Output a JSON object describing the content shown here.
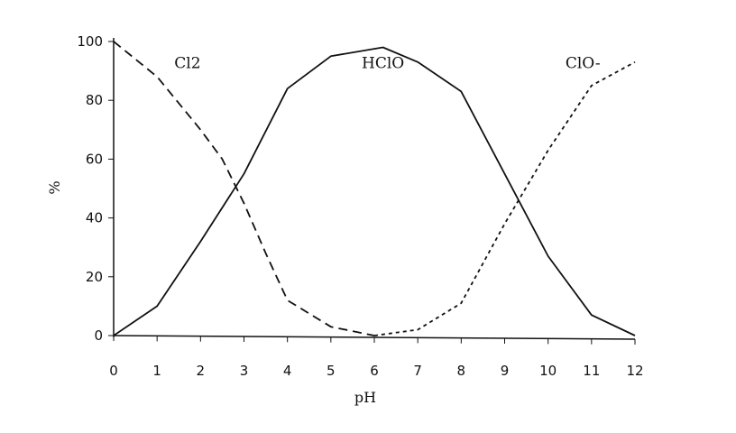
{
  "chart_data": {
    "type": "line",
    "title": "",
    "xlabel": "pH",
    "ylabel": "%",
    "xlim": [
      0,
      12
    ],
    "ylim": [
      0,
      100
    ],
    "x_ticks": [
      0,
      1,
      2,
      3,
      4,
      5,
      6,
      7,
      8,
      9,
      10,
      11,
      12
    ],
    "y_ticks": [
      0,
      20,
      40,
      60,
      80,
      100
    ],
    "grid": false,
    "legend": "none",
    "series": [
      {
        "name": "Cl2",
        "style": "dashed",
        "x": [
          0,
          1,
          2,
          2.5,
          3,
          3.5,
          4,
          5,
          6
        ],
        "y": [
          100,
          88,
          70,
          60,
          45,
          28,
          12,
          3,
          0
        ]
      },
      {
        "name": "HClO",
        "style": "solid",
        "x": [
          0,
          1,
          2,
          3,
          4,
          5,
          6.2,
          7,
          8,
          9,
          10,
          11,
          12
        ],
        "y": [
          0,
          10,
          32,
          55,
          84,
          95,
          98,
          93,
          83,
          55,
          27,
          7,
          0
        ]
      },
      {
        "name": "ClO-",
        "style": "dotted",
        "x": [
          6,
          7,
          8,
          9,
          10,
          11,
          12
        ],
        "y": [
          0,
          2,
          11,
          38,
          63,
          85,
          93
        ]
      }
    ],
    "series_labels": [
      {
        "text": "Cl2",
        "x": 1.7,
        "y": 91
      },
      {
        "text": "HClO",
        "x": 6.2,
        "y": 91
      },
      {
        "text": "ClO-",
        "x": 10.8,
        "y": 91
      }
    ]
  }
}
